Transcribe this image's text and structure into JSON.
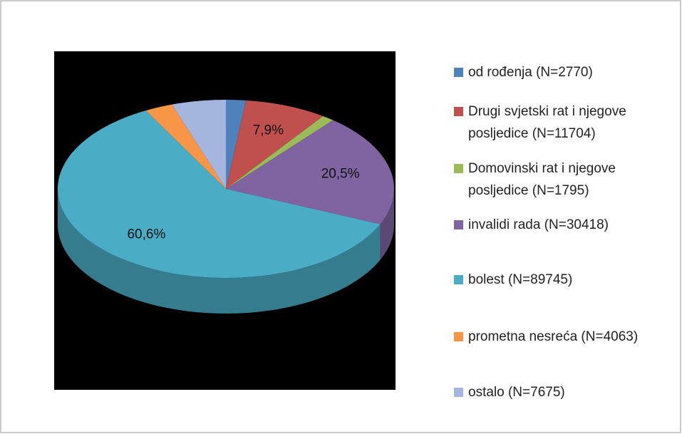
{
  "chart_data": {
    "type": "pie",
    "categories": [
      "od rođenja (N=2770)",
      "Drugi svjetski rat i njegove posljedice (N=11704)",
      "Domovinski rat i njegove posljedice (N=1795)",
      "invalidi rada (N=30418)",
      "bolest (N=89745)",
      "prometna nesreća (N=4063)",
      "ostalo (N=7675)"
    ],
    "values": [
      1.9,
      7.9,
      1.2,
      20.5,
      60.6,
      2.7,
      5.2
    ],
    "value_labels": [
      null,
      "7,9%",
      null,
      "20,5%",
      "60,6%",
      null,
      null
    ],
    "colors": [
      "#4f81bd",
      "#c0504d",
      "#9bbb59",
      "#8064a2",
      "#4bacc6",
      "#f79646",
      "#a5b6de"
    ],
    "legend": "right"
  }
}
